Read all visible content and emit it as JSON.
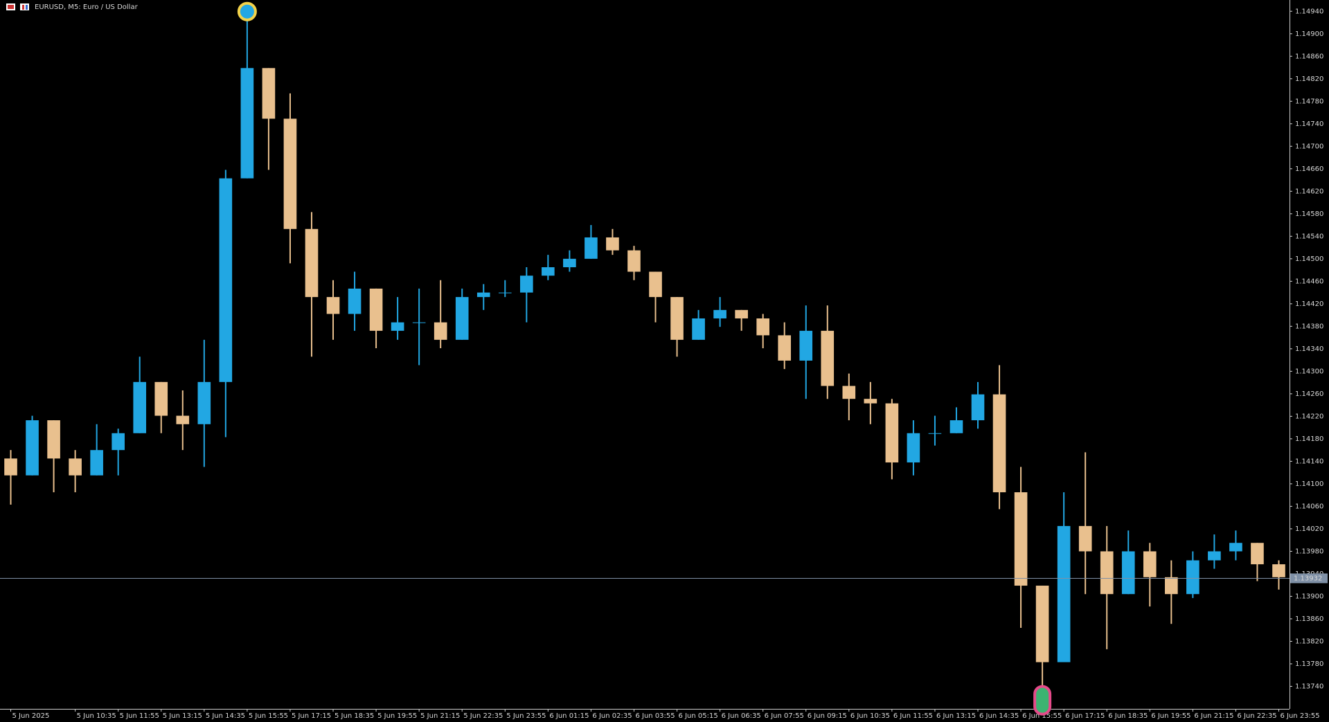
{
  "chart_data": {
    "type": "candlestick",
    "title": "EURUSD, M5:  Euro / US Dollar",
    "categories": [
      "5 Jun 2025",
      null,
      null,
      "5 Jun 10:35",
      null,
      "5 Jun 11:55",
      null,
      "5 Jun 13:15",
      null,
      "5 Jun 14:35",
      null,
      "5 Jun 15:55",
      null,
      "5 Jun 17:15",
      null,
      "5 Jun 18:35",
      null,
      "5 Jun 19:55",
      null,
      "5 Jun 21:15",
      null,
      "5 Jun 22:35",
      null,
      "5 Jun 23:55",
      null,
      "6 Jun 01:15",
      null,
      "6 Jun 02:35",
      null,
      "6 Jun 03:55",
      null,
      "6 Jun 05:15",
      null,
      "6 Jun 06:35",
      null,
      "6 Jun 07:55",
      null,
      "6 Jun 09:15",
      null,
      "6 Jun 10:35",
      null,
      "6 Jun 11:55",
      null,
      "6 Jun 13:15",
      null,
      "6 Jun 14:35",
      null,
      "6 Jun 15:55",
      null,
      "6 Jun 17:15",
      null,
      "6 Jun 18:35",
      null,
      "6 Jun 19:55",
      null,
      "6 Jun 21:15",
      null,
      "6 Jun 22:35",
      null,
      "6 Jun 23:55"
    ],
    "open": [
      1.14145,
      1.14115,
      1.14213,
      1.14145,
      1.14115,
      1.1416,
      1.1419,
      1.14281,
      1.14221,
      1.14206,
      1.14281,
      1.14643,
      1.14839,
      1.14749,
      1.14553,
      1.14432,
      1.14402,
      1.14447,
      1.14372,
      1.14387,
      1.14387,
      1.14356,
      1.14432,
      1.1444,
      1.1444,
      1.1447,
      1.14485,
      1.145,
      1.14538,
      1.14515,
      1.14477,
      1.14432,
      1.14356,
      1.14394,
      1.14409,
      1.14394,
      1.14364,
      1.14319,
      1.14372,
      1.14274,
      1.14251,
      1.14243,
      1.14138,
      1.1419,
      1.1419,
      1.14213,
      1.14259,
      1.14085,
      1.13919,
      1.13783,
      1.14025,
      1.1398,
      1.13904,
      1.1398,
      1.13934,
      1.13904,
      1.13964,
      1.1398,
      1.13995,
      1.13957
    ],
    "high": [
      1.1416,
      1.14221,
      1.14213,
      1.1416,
      1.14206,
      1.14198,
      1.14326,
      1.14281,
      1.14266,
      1.14356,
      1.14658,
      1.14937,
      1.14839,
      1.14794,
      1.14583,
      1.14462,
      1.14477,
      1.14447,
      1.14432,
      1.14447,
      1.14462,
      1.14447,
      1.14455,
      1.14462,
      1.14485,
      1.14507,
      1.14515,
      1.1456,
      1.14553,
      1.14523,
      1.14477,
      1.14432,
      1.14409,
      1.14432,
      1.14409,
      1.14402,
      1.14387,
      1.14417,
      1.14417,
      1.14296,
      1.14281,
      1.14251,
      1.14213,
      1.14221,
      1.14236,
      1.14281,
      1.14311,
      1.1413,
      1.13919,
      1.14085,
      1.14156,
      1.14025,
      1.14017,
      1.13995,
      1.13964,
      1.1398,
      1.1401,
      1.14017,
      1.13995,
      1.13964
    ],
    "low": [
      1.14063,
      1.14115,
      1.14085,
      1.14085,
      1.14115,
      1.14115,
      1.1419,
      1.1419,
      1.1416,
      1.1413,
      1.14183,
      1.14643,
      1.14658,
      1.14492,
      1.14326,
      1.14356,
      1.14372,
      1.14341,
      1.14356,
      1.14311,
      1.14341,
      1.14356,
      1.14409,
      1.14432,
      1.14387,
      1.14462,
      1.14477,
      1.145,
      1.14507,
      1.14462,
      1.14387,
      1.14326,
      1.14356,
      1.14379,
      1.14372,
      1.14341,
      1.14304,
      1.14251,
      1.14251,
      1.14213,
      1.14206,
      1.14108,
      1.14115,
      1.14168,
      1.1419,
      1.14198,
      1.14055,
      1.13844,
      1.1373,
      1.13783,
      1.13904,
      1.13806,
      1.13904,
      1.13882,
      1.13851,
      1.13897,
      1.13949,
      1.13964,
      1.13927,
      1.13912
    ],
    "close": [
      1.14115,
      1.14213,
      1.14145,
      1.14115,
      1.1416,
      1.1419,
      1.14281,
      1.14221,
      1.14206,
      1.14281,
      1.14643,
      1.14839,
      1.14749,
      1.14553,
      1.14432,
      1.14402,
      1.14447,
      1.14372,
      1.14387,
      1.14387,
      1.14356,
      1.14432,
      1.1444,
      1.1444,
      1.1447,
      1.14485,
      1.145,
      1.14538,
      1.14515,
      1.14477,
      1.14432,
      1.14356,
      1.14394,
      1.14409,
      1.14394,
      1.14364,
      1.14319,
      1.14372,
      1.14274,
      1.14251,
      1.14243,
      1.14138,
      1.1419,
      1.1419,
      1.14213,
      1.14259,
      1.14085,
      1.13919,
      1.13783,
      1.14025,
      1.1398,
      1.13904,
      1.1398,
      1.13934,
      1.13904,
      1.13964,
      1.1398,
      1.13995,
      1.13957,
      1.13934
    ],
    "up_color": "#22a7e3",
    "down_color": "#e9c08e",
    "ylim": [
      1.137,
      1.1496
    ],
    "yticks": [
      {
        "value": 1.1374,
        "label": "1.13740"
      },
      {
        "value": 1.1378,
        "label": "1.13780"
      },
      {
        "value": 1.1382,
        "label": "1.13820"
      },
      {
        "value": 1.1386,
        "label": "1.13860"
      },
      {
        "value": 1.139,
        "label": "1.13900"
      },
      {
        "value": 1.1394,
        "label": "1.13940"
      },
      {
        "value": 1.1398,
        "label": "1.13980"
      },
      {
        "value": 1.1402,
        "label": "1.14020"
      },
      {
        "value": 1.1406,
        "label": "1.14060"
      },
      {
        "value": 1.141,
        "label": "1.14100"
      },
      {
        "value": 1.1414,
        "label": "1.14140"
      },
      {
        "value": 1.1418,
        "label": "1.14180"
      },
      {
        "value": 1.1422,
        "label": "1.14220"
      },
      {
        "value": 1.1426,
        "label": "1.14260"
      },
      {
        "value": 1.143,
        "label": "1.14300"
      },
      {
        "value": 1.1434,
        "label": "1.14340"
      },
      {
        "value": 1.1438,
        "label": "1.14380"
      },
      {
        "value": 1.1442,
        "label": "1.14420"
      },
      {
        "value": 1.1446,
        "label": "1.14460"
      },
      {
        "value": 1.145,
        "label": "1.14500"
      },
      {
        "value": 1.1454,
        "label": "1.14540"
      },
      {
        "value": 1.1458,
        "label": "1.14580"
      },
      {
        "value": 1.1462,
        "label": "1.14620"
      },
      {
        "value": 1.1466,
        "label": "1.14660"
      },
      {
        "value": 1.147,
        "label": "1.14700"
      },
      {
        "value": 1.1474,
        "label": "1.14740"
      },
      {
        "value": 1.1478,
        "label": "1.14780"
      },
      {
        "value": 1.1482,
        "label": "1.14820"
      },
      {
        "value": 1.1486,
        "label": "1.14860"
      },
      {
        "value": 1.149,
        "label": "1.14900"
      },
      {
        "value": 1.1494,
        "label": "1.14940"
      }
    ],
    "last_price": 1.13932,
    "last_price_color": "#7f90a6"
  }
}
